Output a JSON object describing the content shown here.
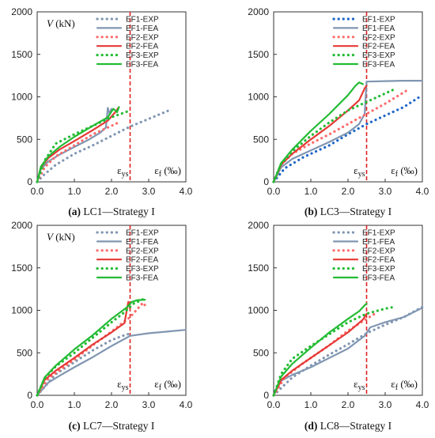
{
  "chart_data": [
    {
      "type": "line",
      "caption_letter": "(a)",
      "caption_text": " LC1—Strategy I",
      "xlim": [
        0,
        4.0
      ],
      "ylim": [
        0,
        2000
      ],
      "x_ticks": [
        "0.0",
        "1.0",
        "2.0",
        "3.0",
        "4.0"
      ],
      "y_ticks": [
        "0",
        "500",
        "1000",
        "1500",
        "2000"
      ],
      "ylabel": "V (kN)",
      "xlabel": "εf (‰)",
      "yield_label": "εys",
      "yield_strain": 2.5,
      "legend_position": "top-right",
      "series": [
        {
          "name": "EF1-EXP",
          "style": "dotted",
          "color": "#8096b2",
          "points": [
            [
              0,
              0
            ],
            [
              0.2,
              90
            ],
            [
              0.5,
              200
            ],
            [
              1.0,
              330
            ],
            [
              1.5,
              430
            ],
            [
              2.0,
              540
            ],
            [
              2.5,
              650
            ],
            [
              3.0,
              740
            ],
            [
              3.6,
              850
            ]
          ]
        },
        {
          "name": "EF1-FEA",
          "style": "solid",
          "color": "#8096b2",
          "points": [
            [
              0,
              0
            ],
            [
              0.1,
              150
            ],
            [
              0.3,
              240
            ],
            [
              0.6,
              320
            ],
            [
              1.0,
              410
            ],
            [
              1.4,
              500
            ],
            [
              1.7,
              580
            ],
            [
              1.85,
              640
            ],
            [
              1.9,
              870
            ],
            [
              1.95,
              800
            ],
            [
              2.0,
              860
            ]
          ]
        },
        {
          "name": "EF2-EXP",
          "style": "dotted",
          "color": "#ff6a6a",
          "points": [
            [
              0,
              0
            ],
            [
              0.2,
              170
            ],
            [
              0.5,
              300
            ],
            [
              1.0,
              430
            ],
            [
              1.5,
              560
            ],
            [
              2.0,
              660
            ],
            [
              2.2,
              700
            ]
          ]
        },
        {
          "name": "EF2-FEA",
          "style": "solid",
          "color": "#e53935",
          "points": [
            [
              0,
              0
            ],
            [
              0.1,
              170
            ],
            [
              0.3,
              280
            ],
            [
              0.6,
              380
            ],
            [
              1.0,
              480
            ],
            [
              1.5,
              610
            ],
            [
              1.9,
              720
            ],
            [
              2.1,
              820
            ],
            [
              2.2,
              880
            ]
          ]
        },
        {
          "name": "EF3-EXP",
          "style": "dotted",
          "color": "#22bb33",
          "points": [
            [
              0,
              0
            ],
            [
              0.2,
              250
            ],
            [
              0.5,
              450
            ],
            [
              1.0,
              560
            ],
            [
              1.5,
              660
            ],
            [
              2.0,
              760
            ],
            [
              2.5,
              840
            ]
          ]
        },
        {
          "name": "EF3-FEA",
          "style": "solid",
          "color": "#22bb33",
          "points": [
            [
              0,
              0
            ],
            [
              0.1,
              180
            ],
            [
              0.3,
              300
            ],
            [
              0.6,
              410
            ],
            [
              1.0,
              530
            ],
            [
              1.5,
              660
            ],
            [
              1.9,
              760
            ],
            [
              2.05,
              860
            ],
            [
              2.15,
              820
            ],
            [
              2.2,
              880
            ]
          ]
        }
      ]
    },
    {
      "type": "line",
      "caption_letter": "(b)",
      "caption_text": " LC3—Strategy I",
      "xlim": [
        0,
        4.0
      ],
      "ylim": [
        0,
        2000
      ],
      "x_ticks": [
        "0.0",
        "1.0",
        "2.0",
        "3.0",
        "4.0"
      ],
      "y_ticks": [
        "0",
        "500",
        "1000",
        "1500",
        "2000"
      ],
      "ylabel": "",
      "xlabel": "εf (‰)",
      "yield_label": "εys",
      "yield_strain": 2.5,
      "legend_position": "top-right",
      "series": [
        {
          "name": "EF1-EXP",
          "style": "dotted",
          "color": "#1e66c8",
          "points": [
            [
              0,
              0
            ],
            [
              0.3,
              160
            ],
            [
              0.8,
              290
            ],
            [
              1.5,
              430
            ],
            [
              2.0,
              560
            ],
            [
              2.5,
              680
            ],
            [
              3.0,
              780
            ],
            [
              3.5,
              880
            ],
            [
              4.0,
              1020
            ]
          ]
        },
        {
          "name": "EF1-FEA",
          "style": "solid",
          "color": "#8096b2",
          "points": [
            [
              0,
              0
            ],
            [
              0.2,
              170
            ],
            [
              0.5,
              270
            ],
            [
              1.0,
              370
            ],
            [
              1.5,
              470
            ],
            [
              2.0,
              580
            ],
            [
              2.3,
              680
            ],
            [
              2.45,
              800
            ],
            [
              2.5,
              1180
            ],
            [
              3.0,
              1185
            ],
            [
              3.5,
              1190
            ],
            [
              4.0,
              1190
            ]
          ]
        },
        {
          "name": "EF2-EXP",
          "style": "dotted",
          "color": "#ff6a6a",
          "points": [
            [
              0,
              0
            ],
            [
              0.2,
              200
            ],
            [
              0.5,
              330
            ],
            [
              1.0,
              450
            ],
            [
              1.5,
              560
            ],
            [
              2.0,
              680
            ],
            [
              2.5,
              800
            ],
            [
              3.0,
              920
            ],
            [
              3.6,
              1080
            ]
          ]
        },
        {
          "name": "EF2-FEA",
          "style": "solid",
          "color": "#e53935",
          "points": [
            [
              0,
              0
            ],
            [
              0.2,
              200
            ],
            [
              0.5,
              330
            ],
            [
              1.0,
              500
            ],
            [
              1.5,
              660
            ],
            [
              2.0,
              840
            ],
            [
              2.3,
              960
            ],
            [
              2.45,
              1100
            ],
            [
              2.5,
              1130
            ]
          ]
        },
        {
          "name": "EF3-EXP",
          "style": "dotted",
          "color": "#22bb33",
          "points": [
            [
              0,
              0
            ],
            [
              0.2,
              210
            ],
            [
              0.5,
              360
            ],
            [
              1.0,
              540
            ],
            [
              1.5,
              700
            ],
            [
              2.0,
              840
            ],
            [
              2.5,
              940
            ],
            [
              3.0,
              1040
            ],
            [
              3.2,
              1080
            ]
          ]
        },
        {
          "name": "EF3-FEA",
          "style": "solid",
          "color": "#22bb33",
          "points": [
            [
              0,
              0
            ],
            [
              0.2,
              220
            ],
            [
              0.5,
              380
            ],
            [
              1.0,
              600
            ],
            [
              1.5,
              800
            ],
            [
              2.0,
              1020
            ],
            [
              2.2,
              1130
            ],
            [
              2.3,
              1170
            ],
            [
              2.4,
              1150
            ]
          ]
        }
      ]
    },
    {
      "type": "line",
      "caption_letter": "(c)",
      "caption_text": " LC7—Strategy I",
      "xlim": [
        0,
        4.0
      ],
      "ylim": [
        0,
        2000
      ],
      "x_ticks": [
        "0.0",
        "1.0",
        "2.0",
        "3.0",
        "4.0"
      ],
      "y_ticks": [
        "0",
        "500",
        "1000",
        "1500",
        "2000"
      ],
      "ylabel": "V (kN)",
      "xlabel": "εf (‰)",
      "yield_label": "εys",
      "yield_strain": 2.5,
      "legend_position": "top-right",
      "series": [
        {
          "name": "EF1-EXP",
          "style": "dotted",
          "color": "#8096b2",
          "points": [
            [
              0,
              0
            ],
            [
              0.5,
              250
            ],
            [
              1.0,
              390
            ],
            [
              1.5,
              530
            ],
            [
              2.0,
              650
            ],
            [
              2.3,
              700
            ],
            [
              2.45,
              720
            ]
          ]
        },
        {
          "name": "EF1-FEA",
          "style": "solid",
          "color": "#8096b2",
          "points": [
            [
              0,
              0
            ],
            [
              0.3,
              150
            ],
            [
              0.6,
              230
            ],
            [
              1.0,
              330
            ],
            [
              1.5,
              450
            ],
            [
              2.0,
              580
            ],
            [
              2.5,
              700
            ],
            [
              3.0,
              730
            ],
            [
              3.5,
              750
            ],
            [
              4.0,
              770
            ]
          ]
        },
        {
          "name": "EF2-EXP",
          "style": "dotted",
          "color": "#ff6a6a",
          "points": [
            [
              0,
              0
            ],
            [
              0.3,
              200
            ],
            [
              1.0,
              420
            ],
            [
              1.5,
              590
            ],
            [
              2.0,
              750
            ],
            [
              2.5,
              920
            ],
            [
              2.85,
              1090
            ],
            [
              2.9,
              1060
            ]
          ]
        },
        {
          "name": "EF2-FEA",
          "style": "solid",
          "color": "#e53935",
          "points": [
            [
              0,
              0
            ],
            [
              0.2,
              180
            ],
            [
              0.5,
              290
            ],
            [
              1.0,
              440
            ],
            [
              1.5,
              600
            ],
            [
              2.0,
              740
            ],
            [
              2.35,
              850
            ],
            [
              2.45,
              1100
            ],
            [
              2.5,
              1020
            ]
          ]
        },
        {
          "name": "EF3-EXP",
          "style": "dotted",
          "color": "#22bb33",
          "points": [
            [
              0,
              0
            ],
            [
              0.2,
              200
            ],
            [
              0.5,
              340
            ],
            [
              1.0,
              500
            ],
            [
              1.5,
              680
            ],
            [
              2.0,
              860
            ],
            [
              2.3,
              960
            ],
            [
              2.6,
              1080
            ],
            [
              2.85,
              1130
            ]
          ]
        },
        {
          "name": "EF3-FEA",
          "style": "solid",
          "color": "#22bb33",
          "points": [
            [
              0,
              0
            ],
            [
              0.2,
              210
            ],
            [
              0.5,
              350
            ],
            [
              1.0,
              540
            ],
            [
              1.5,
              710
            ],
            [
              2.0,
              900
            ],
            [
              2.4,
              1030
            ],
            [
              2.55,
              1100
            ],
            [
              2.7,
              1120
            ],
            [
              2.9,
              1125
            ]
          ]
        }
      ]
    },
    {
      "type": "line",
      "caption_letter": "(d)",
      "caption_text": " LC8—Strategy I",
      "xlim": [
        0,
        4.0
      ],
      "ylim": [
        0,
        2000
      ],
      "x_ticks": [
        "0.0",
        "1.0",
        "2.0",
        "3.0",
        "4.0"
      ],
      "y_ticks": [
        "0",
        "500",
        "1000",
        "1500",
        "2000"
      ],
      "ylabel": "",
      "xlabel": "εf (‰)",
      "yield_label": "εys",
      "yield_strain": 2.5,
      "legend_position": "top-right",
      "series": [
        {
          "name": "EF1-EXP",
          "style": "dotted",
          "color": "#8096b2",
          "points": [
            [
              0,
              0
            ],
            [
              0.5,
              210
            ],
            [
              1.0,
              350
            ],
            [
              1.5,
              480
            ],
            [
              2.0,
              600
            ],
            [
              2.5,
              730
            ],
            [
              3.0,
              830
            ],
            [
              3.5,
              920
            ],
            [
              4.0,
              1040
            ]
          ]
        },
        {
          "name": "EF1-FEA",
          "style": "solid",
          "color": "#8096b2",
          "points": [
            [
              0,
              0
            ],
            [
              0.2,
              170
            ],
            [
              0.5,
              240
            ],
            [
              1.0,
              330
            ],
            [
              1.5,
              440
            ],
            [
              2.0,
              550
            ],
            [
              2.45,
              700
            ],
            [
              2.6,
              800
            ],
            [
              3.0,
              860
            ],
            [
              3.5,
              920
            ],
            [
              4.0,
              1030
            ]
          ]
        },
        {
          "name": "EF2-EXP",
          "style": "dotted",
          "color": "#ff6a6a",
          "points": [
            [
              0,
              0
            ],
            [
              0.3,
              210
            ],
            [
              0.8,
              380
            ],
            [
              1.5,
              590
            ],
            [
              2.0,
              760
            ],
            [
              2.5,
              900
            ],
            [
              2.8,
              980
            ]
          ]
        },
        {
          "name": "EF2-FEA",
          "style": "solid",
          "color": "#e53935",
          "points": [
            [
              0,
              0
            ],
            [
              0.2,
              180
            ],
            [
              0.5,
              290
            ],
            [
              1.0,
              440
            ],
            [
              1.5,
              590
            ],
            [
              2.0,
              740
            ],
            [
              2.4,
              890
            ],
            [
              2.5,
              960
            ]
          ]
        },
        {
          "name": "EF3-EXP",
          "style": "dotted",
          "color": "#22bb33",
          "points": [
            [
              0,
              0
            ],
            [
              0.2,
              250
            ],
            [
              0.5,
              430
            ],
            [
              1.0,
              580
            ],
            [
              1.5,
              720
            ],
            [
              2.0,
              860
            ],
            [
              2.5,
              960
            ],
            [
              3.0,
              1020
            ],
            [
              3.25,
              1040
            ]
          ]
        },
        {
          "name": "EF3-FEA",
          "style": "solid",
          "color": "#22bb33",
          "points": [
            [
              0,
              0
            ],
            [
              0.2,
              220
            ],
            [
              0.5,
              370
            ],
            [
              1.0,
              560
            ],
            [
              1.5,
              740
            ],
            [
              2.0,
              900
            ],
            [
              2.3,
              990
            ],
            [
              2.45,
              1060
            ],
            [
              2.5,
              1080
            ]
          ]
        }
      ]
    }
  ]
}
